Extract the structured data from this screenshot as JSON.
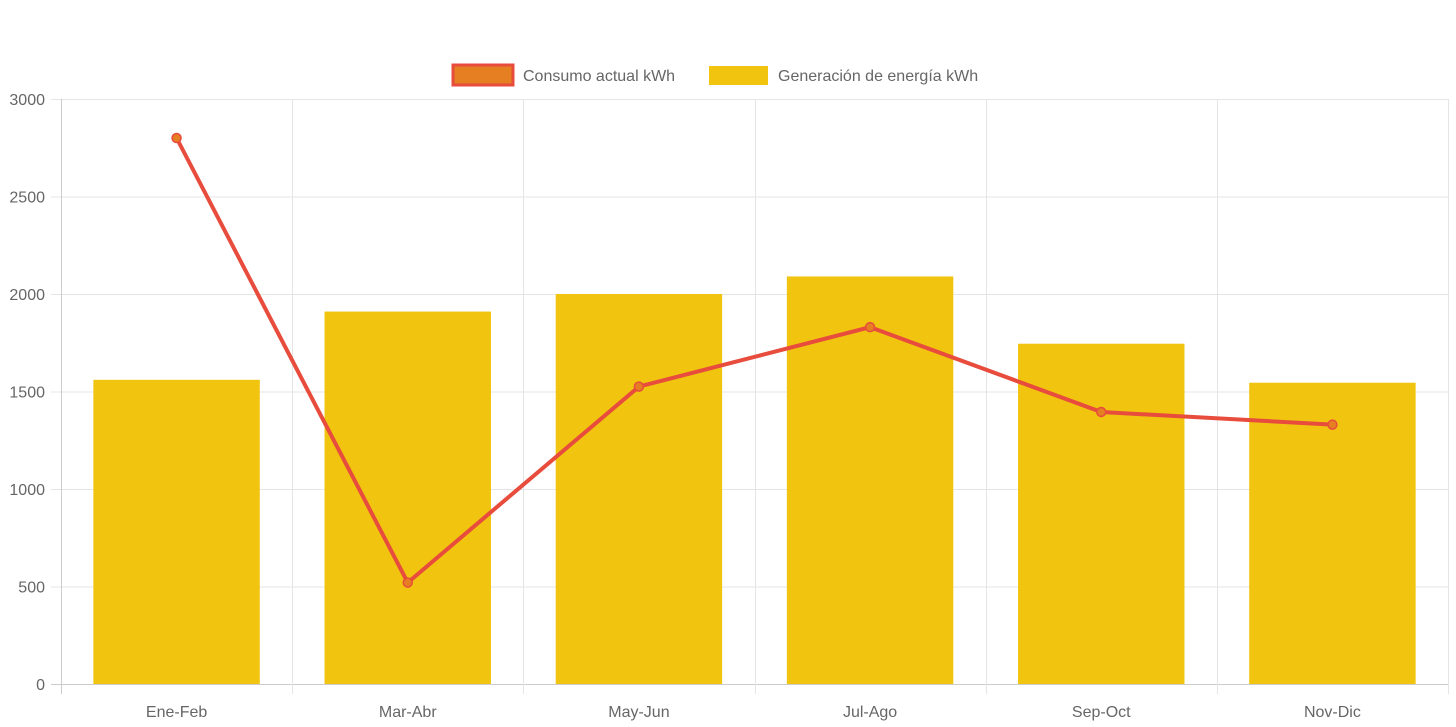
{
  "chart_data": {
    "type": "bar",
    "title": "",
    "xlabel": "",
    "ylabel": "",
    "ylim": [
      0,
      3000
    ],
    "yticks": [
      0,
      500,
      1000,
      1500,
      2000,
      2500,
      3000
    ],
    "grid": true,
    "legend_position": "top-center",
    "categories": [
      "Ene-Feb",
      "Mar-Abr",
      "May-Jun",
      "Jul-Ago",
      "Sep-Oct",
      "Nov-Dic"
    ],
    "series": [
      {
        "name": "Consumo actual kWh",
        "type": "line",
        "color": "#e74c3c",
        "point_color": "#e67e22",
        "values": [
          2800,
          520,
          1525,
          1830,
          1395,
          1330
        ]
      },
      {
        "name": "Generación de energía kWh",
        "type": "bar",
        "color": "#f1c40f",
        "values": [
          1560,
          1910,
          2000,
          2090,
          1745,
          1545
        ]
      }
    ]
  }
}
